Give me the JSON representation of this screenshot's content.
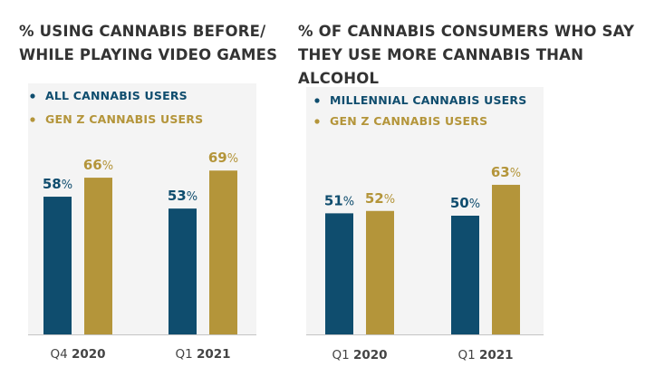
{
  "colors": {
    "navy": "#0f4d6e",
    "gold": "#b4953a",
    "title": "#333333"
  },
  "chart_data": [
    {
      "type": "bar",
      "title_lines": [
        "% USING CANNABIS BEFORE/",
        "WHILE PLAYING VIDEO GAMES"
      ],
      "categories": [
        {
          "prefix": "Q4",
          "year": "2020"
        },
        {
          "prefix": "Q1",
          "year": "2021"
        }
      ],
      "series": [
        {
          "name": "ALL CANNABIS USERS",
          "color": "#0f4d6e",
          "values": [
            58,
            53
          ]
        },
        {
          "name": "GEN Z CANNABIS USERS",
          "color": "#b4953a",
          "values": [
            66,
            69
          ]
        }
      ],
      "value_suffix": "%",
      "ylim": [
        0,
        100
      ],
      "xlabel": "",
      "ylabel": ""
    },
    {
      "type": "bar",
      "title_lines": [
        "% OF CANNABIS CONSUMERS WHO SAY",
        "THEY USE MORE CANNABIS THAN ALCOHOL"
      ],
      "categories": [
        {
          "prefix": "Q1",
          "year": "2020"
        },
        {
          "prefix": "Q1",
          "year": "2021"
        }
      ],
      "series": [
        {
          "name": "MILLENNIAL CANNABIS USERS",
          "color": "#0f4d6e",
          "values": [
            51,
            50
          ]
        },
        {
          "name": "GEN Z CANNABIS USERS",
          "color": "#b4953a",
          "values": [
            52,
            63
          ]
        }
      ],
      "value_suffix": "%",
      "ylim": [
        0,
        100
      ],
      "xlabel": "",
      "ylabel": ""
    }
  ]
}
